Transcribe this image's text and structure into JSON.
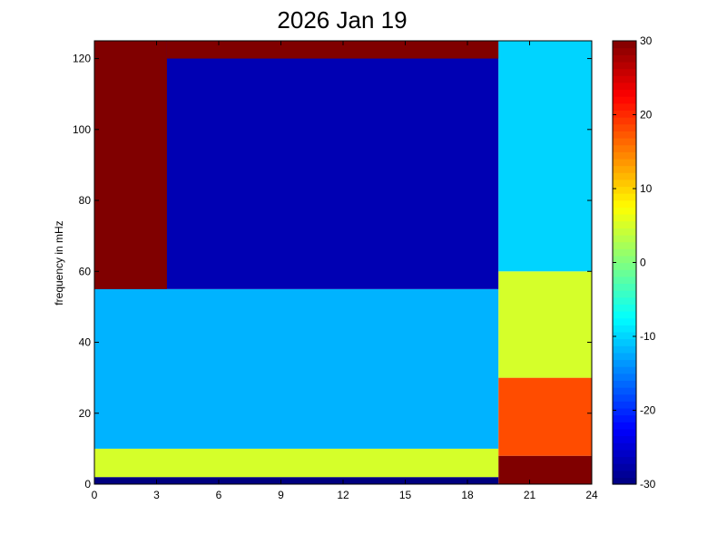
{
  "chart_data": {
    "type": "heatmap",
    "title": "2026 Jan 19",
    "xlabel": "",
    "ylabel": "frequency in mHz",
    "xlim": [
      0,
      24
    ],
    "ylim": [
      0,
      125
    ],
    "x_ticks": [
      0,
      3,
      6,
      9,
      12,
      15,
      18,
      21,
      24
    ],
    "y_ticks": [
      0,
      20,
      40,
      60,
      80,
      100,
      120
    ],
    "colorbar": {
      "colormap": "jet",
      "clim": [
        -30,
        30
      ],
      "ticks": [
        -30,
        -20,
        -10,
        0,
        10,
        20,
        30
      ]
    },
    "grid": false,
    "regions": [
      {
        "hours": [
          0,
          19.5
        ],
        "freq_mHz": [
          0,
          2
        ],
        "level": -30
      },
      {
        "hours": [
          0,
          19.5
        ],
        "freq_mHz": [
          2,
          10
        ],
        "level": 5
      },
      {
        "hours": [
          0,
          19.5
        ],
        "freq_mHz": [
          10,
          55
        ],
        "level": -12
      },
      {
        "hours": [
          0,
          19.5
        ],
        "freq_mHz": [
          55,
          125
        ],
        "level": -27
      },
      {
        "hours": [
          0,
          3.5
        ],
        "freq_mHz": [
          55,
          125
        ],
        "level": 30
      },
      {
        "hours": [
          3.5,
          19.5
        ],
        "freq_mHz": [
          120,
          125
        ],
        "level": 30
      },
      {
        "hours": [
          19.5,
          24
        ],
        "freq_mHz": [
          0,
          8
        ],
        "level": 30
      },
      {
        "hours": [
          19.5,
          24
        ],
        "freq_mHz": [
          8,
          30
        ],
        "level": 18
      },
      {
        "hours": [
          19.5,
          24
        ],
        "freq_mHz": [
          30,
          60
        ],
        "level": 5
      },
      {
        "hours": [
          19.5,
          24
        ],
        "freq_mHz": [
          60,
          125
        ],
        "level": -10
      }
    ]
  }
}
